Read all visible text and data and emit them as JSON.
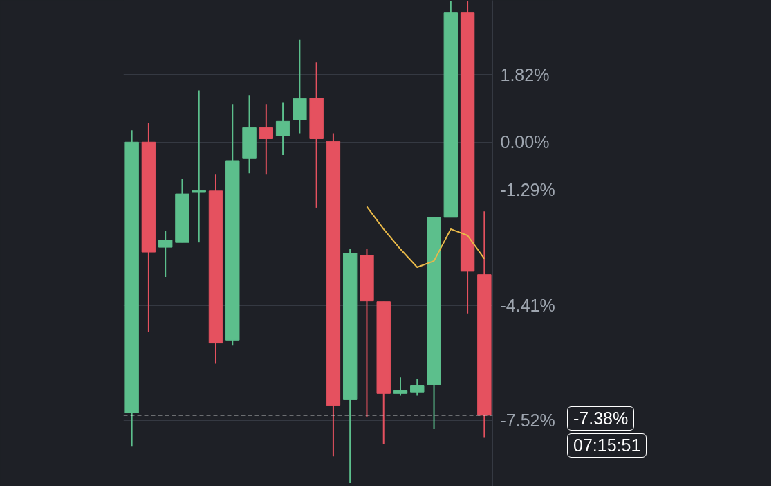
{
  "chart_data": {
    "type": "candlestick",
    "categories": [
      null,
      null,
      null,
      null,
      null,
      null,
      null,
      null,
      null,
      null,
      null,
      null,
      null,
      null,
      null,
      null,
      null,
      null,
      null,
      null,
      null,
      null
    ],
    "ohlc": [
      [
        -7.31,
        0.32,
        -8.21,
        0.0
      ],
      [
        0.0,
        0.52,
        -5.13,
        -2.97
      ],
      [
        -2.84,
        -2.39,
        -3.64,
        -2.65
      ],
      [
        -2.71,
        -0.99,
        -2.71,
        -1.4
      ],
      [
        -1.36,
        1.4,
        -2.71,
        -1.31
      ],
      [
        -1.32,
        -0.88,
        -5.99,
        -5.43
      ],
      [
        -5.35,
        1.03,
        -5.5,
        -0.5
      ],
      [
        -0.43,
        1.27,
        -0.84,
        0.39
      ],
      [
        0.39,
        1.03,
        -0.88,
        0.09
      ],
      [
        0.17,
        1.06,
        -0.35,
        0.56
      ],
      [
        0.6,
        2.76,
        0.24,
        1.18
      ],
      [
        1.19,
        2.15,
        -1.77,
        0.09
      ],
      [
        0.02,
        0.24,
        -8.49,
        -7.11
      ],
      [
        -6.96,
        -2.89,
        -9.2,
        -3.0
      ],
      [
        -3.06,
        -2.89,
        -7.44,
        -4.29
      ],
      [
        -4.31,
        -4.31,
        -8.17,
        -6.79
      ],
      [
        -6.79,
        -6.36,
        -6.85,
        -6.72
      ],
      [
        -6.75,
        -6.4,
        -6.85,
        -6.57
      ],
      [
        -6.55,
        -2.03,
        -7.74,
        -2.03
      ],
      [
        -2.03,
        3.8,
        -2.03,
        3.49
      ],
      [
        3.49,
        3.8,
        -4.63,
        -3.49
      ],
      [
        -3.58,
        -1.87,
        -7.97,
        -7.38
      ]
    ],
    "colors": [
      "#5cbf8c",
      "#e5515f",
      "#5cbf8c",
      "#5cbf8c",
      "#5cbf8c",
      "#e5515f",
      "#5cbf8c",
      "#5cbf8c",
      "#e5515f",
      "#5cbf8c",
      "#5cbf8c",
      "#e5515f",
      "#e5515f",
      "#5cbf8c",
      "#e5515f",
      "#e5515f",
      "#5cbf8c",
      "#5cbf8c",
      "#5cbf8c",
      "#5cbf8c",
      "#e5515f",
      "#e5515f"
    ],
    "series": [
      {
        "type": "line",
        "color": "#e9b949",
        "values": [
          null,
          null,
          null,
          null,
          null,
          null,
          null,
          null,
          null,
          null,
          null,
          null,
          null,
          null,
          -1.74,
          -2.35,
          -2.89,
          -3.38,
          -3.21,
          -2.35,
          -2.52,
          -3.15
        ]
      }
    ],
    "ylim": [
      -9.3,
      3.83
    ],
    "yticks": [
      {
        "value": 1.82,
        "label": "1.82%"
      },
      {
        "value": 0.0,
        "label": "0.00%"
      },
      {
        "value": -1.29,
        "label": "-1.29%"
      },
      {
        "value": -4.41,
        "label": "-4.41%"
      },
      {
        "value": -7.52,
        "label": "-7.52%"
      }
    ],
    "grid": "y",
    "tick_labels": "y",
    "ref_lines": [
      {
        "axis": "y",
        "value": -7.38,
        "label": "-7.38%",
        "color": "#ffffff",
        "line_style": "dashed"
      }
    ],
    "annotations": [
      "07:15:51"
    ]
  }
}
